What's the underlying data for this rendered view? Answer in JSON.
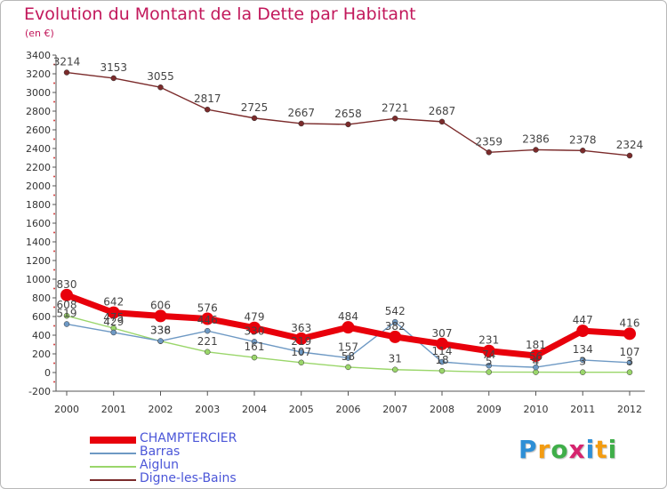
{
  "title": "Evolution du Montant de la Dette par Habitant",
  "subtitle": "(en €)",
  "logo": {
    "text": "Proxiti",
    "letter_colors": [
      "#2e8fd6",
      "#f39c12",
      "#3fae49",
      "#d6246e",
      "#2e8fd6",
      "#f39c12",
      "#3fae49"
    ]
  },
  "chart_data": {
    "type": "line",
    "title": "Evolution du Montant de la Dette par Habitant",
    "subtitle": "(en €)",
    "x": [
      "2000",
      "2001",
      "2002",
      "2003",
      "2004",
      "2005",
      "2006",
      "2007",
      "2008",
      "2009",
      "2010",
      "2011",
      "2012"
    ],
    "ylim": [
      -200,
      3400
    ],
    "yticks": [
      "-200",
      "0",
      "200",
      "400",
      "600",
      "800",
      "1000",
      "1200",
      "1400",
      "1600",
      "1800",
      "2000",
      "2200",
      "2400",
      "2600",
      "2800",
      "3000",
      "3200",
      "3400"
    ],
    "grid": false,
    "legend_position": "bottom-left",
    "series": [
      {
        "name": "Digne-les-Bains",
        "color": "#7b2b2b",
        "values": [
          3214,
          3153,
          3055,
          2817,
          2725,
          2667,
          2658,
          2721,
          2687,
          2359,
          2386,
          2378,
          2324
        ],
        "labels": [
          "3214",
          "3153",
          "3055",
          "2817",
          "2725",
          "2667",
          "2658",
          "2721",
          "2687",
          "2359",
          "2386",
          "2378",
          "2324"
        ]
      },
      {
        "name": "Aiglun",
        "color": "#9ad66a",
        "values": [
          608,
          475,
          336,
          221,
          161,
          107,
          58,
          31,
          18,
          5,
          4,
          3,
          3
        ],
        "labels": [
          "608",
          "475",
          "336",
          "221",
          "161",
          "107",
          "58",
          "31",
          "18",
          "5",
          "4",
          "3",
          "3"
        ]
      },
      {
        "name": "Barras",
        "color": "#6e99c4",
        "values": [
          519,
          429,
          338,
          446,
          330,
          219,
          157,
          542,
          114,
          74,
          56,
          134,
          107
        ],
        "labels": [
          "519",
          "429",
          "338",
          "446",
          "330",
          "219",
          "157",
          "542",
          "114",
          "74",
          "56",
          "134",
          "107"
        ]
      },
      {
        "name": "CHAMPTERCIER",
        "color": "#e8000b",
        "values": [
          830,
          642,
          606,
          576,
          479,
          363,
          484,
          382,
          307,
          231,
          181,
          447,
          416
        ],
        "labels": [
          "830",
          "642",
          "606",
          "576",
          "479",
          "363",
          "484",
          "382",
          "307",
          "231",
          "181",
          "447",
          "416"
        ]
      }
    ],
    "legend": [
      {
        "name": "CHAMPTERCIER",
        "color": "#e8000b"
      },
      {
        "name": "Barras",
        "color": "#6e99c4"
      },
      {
        "name": "Aiglun",
        "color": "#9ad66a"
      },
      {
        "name": "Digne-les-Bains",
        "color": "#7b2b2b"
      }
    ]
  }
}
